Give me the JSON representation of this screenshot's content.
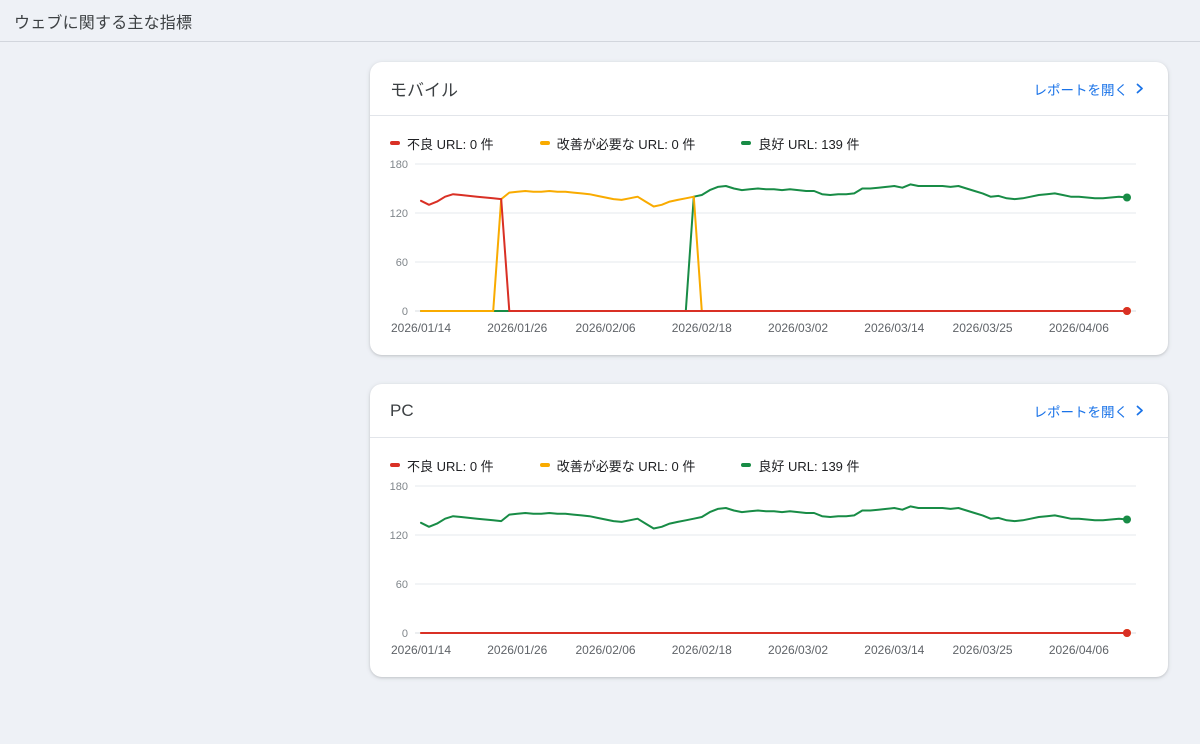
{
  "page": {
    "title": "ウェブに関する主な指標",
    "background": "#eef1f6",
    "accent_link_color": "#1a73e8"
  },
  "cards": [
    {
      "title": "モバイル",
      "report_link_label": "レポートを開く",
      "legend": [
        {
          "label": "不良 URL: 0 件"
        },
        {
          "label": "改善が必要な URL: 0 件"
        },
        {
          "label": "良好 URL: 139 件"
        }
      ]
    },
    {
      "title": "PC",
      "report_link_label": "レポートを開く",
      "legend": [
        {
          "label": "不良 URL: 0 件"
        },
        {
          "label": "改善が必要な URL: 0 件"
        },
        {
          "label": "良好 URL: 139 件"
        }
      ]
    }
  ],
  "chart_data": [
    {
      "type": "line",
      "title": "モバイル",
      "ylabel": "",
      "xlabel": "",
      "ylim": [
        0,
        180
      ],
      "yticks": [
        0,
        60,
        120,
        180
      ],
      "grid": true,
      "legend_position": "top",
      "x_count": 89,
      "xticks": [
        {
          "index": 0,
          "label": "2026/01/14"
        },
        {
          "index": 12,
          "label": "2026/01/26"
        },
        {
          "index": 23,
          "label": "2026/02/06"
        },
        {
          "index": 35,
          "label": "2026/02/18"
        },
        {
          "index": 47,
          "label": "2026/03/02"
        },
        {
          "index": 59,
          "label": "2026/03/14"
        },
        {
          "index": 70,
          "label": "2026/03/25"
        },
        {
          "index": 82,
          "label": "2026/04/06"
        }
      ],
      "series": [
        {
          "name": "不良 URL",
          "color": "#d93025",
          "values": [
            135,
            130,
            134,
            140,
            143,
            142,
            141,
            140,
            139,
            138,
            137,
            0,
            0,
            0,
            0,
            0,
            0,
            0,
            0,
            0,
            0,
            0,
            0,
            0,
            0,
            0,
            0,
            0,
            0,
            0,
            0,
            0,
            0,
            0,
            0,
            0,
            0,
            0,
            0,
            0,
            0,
            0,
            0,
            0,
            0,
            0,
            0,
            0,
            0,
            0,
            0,
            0,
            0,
            0,
            0,
            0,
            0,
            0,
            0,
            0,
            0,
            0,
            0,
            0,
            0,
            0,
            0,
            0,
            0,
            0,
            0,
            0,
            0,
            0,
            0,
            0,
            0,
            0,
            0,
            0,
            0,
            0,
            0,
            0,
            0,
            0,
            0,
            0,
            0
          ]
        },
        {
          "name": "改善が必要な URL",
          "color": "#f9ab00",
          "values": [
            0,
            0,
            0,
            0,
            0,
            0,
            0,
            0,
            0,
            0,
            137,
            145,
            146,
            147,
            146,
            146,
            147,
            146,
            146,
            145,
            144,
            143,
            141,
            139,
            137,
            136,
            138,
            140,
            134,
            128,
            130,
            134,
            136,
            138,
            140,
            0,
            0,
            0,
            0,
            0,
            0,
            0,
            0,
            0,
            0,
            0,
            0,
            0,
            0,
            0,
            0,
            0,
            0,
            0,
            0,
            0,
            0,
            0,
            0,
            0,
            0,
            0,
            0,
            0,
            0,
            0,
            0,
            0,
            0,
            0,
            0,
            0,
            0,
            0,
            0,
            0,
            0,
            0,
            0,
            0,
            0,
            0,
            0,
            0,
            0,
            0,
            0,
            0,
            0
          ]
        },
        {
          "name": "良好 URL",
          "color": "#188c46",
          "values": [
            0,
            0,
            0,
            0,
            0,
            0,
            0,
            0,
            0,
            0,
            0,
            0,
            0,
            0,
            0,
            0,
            0,
            0,
            0,
            0,
            0,
            0,
            0,
            0,
            0,
            0,
            0,
            0,
            0,
            0,
            0,
            0,
            0,
            0,
            140,
            142,
            148,
            152,
            153,
            150,
            148,
            149,
            150,
            149,
            149,
            148,
            149,
            148,
            147,
            147,
            143,
            142,
            143,
            143,
            144,
            150,
            150,
            151,
            152,
            153,
            151,
            155,
            153,
            153,
            153,
            153,
            152,
            153,
            150,
            147,
            144,
            140,
            141,
            138,
            137,
            138,
            140,
            142,
            143,
            144,
            142,
            140,
            140,
            139,
            138,
            138,
            139,
            140,
            139
          ]
        }
      ]
    },
    {
      "type": "line",
      "title": "PC",
      "ylabel": "",
      "xlabel": "",
      "ylim": [
        0,
        180
      ],
      "yticks": [
        0,
        60,
        120,
        180
      ],
      "grid": true,
      "legend_position": "top",
      "x_count": 89,
      "xticks": [
        {
          "index": 0,
          "label": "2026/01/14"
        },
        {
          "index": 12,
          "label": "2026/01/26"
        },
        {
          "index": 23,
          "label": "2026/02/06"
        },
        {
          "index": 35,
          "label": "2026/02/18"
        },
        {
          "index": 47,
          "label": "2026/03/02"
        },
        {
          "index": 59,
          "label": "2026/03/14"
        },
        {
          "index": 70,
          "label": "2026/03/25"
        },
        {
          "index": 82,
          "label": "2026/04/06"
        }
      ],
      "series": [
        {
          "name": "不良 URL",
          "color": "#d93025",
          "values": [
            0,
            0,
            0,
            0,
            0,
            0,
            0,
            0,
            0,
            0,
            0,
            0,
            0,
            0,
            0,
            0,
            0,
            0,
            0,
            0,
            0,
            0,
            0,
            0,
            0,
            0,
            0,
            0,
            0,
            0,
            0,
            0,
            0,
            0,
            0,
            0,
            0,
            0,
            0,
            0,
            0,
            0,
            0,
            0,
            0,
            0,
            0,
            0,
            0,
            0,
            0,
            0,
            0,
            0,
            0,
            0,
            0,
            0,
            0,
            0,
            0,
            0,
            0,
            0,
            0,
            0,
            0,
            0,
            0,
            0,
            0,
            0,
            0,
            0,
            0,
            0,
            0,
            0,
            0,
            0,
            0,
            0,
            0,
            0,
            0,
            0,
            0,
            0,
            0
          ]
        },
        {
          "name": "改善が必要な URL",
          "color": "#f9ab00",
          "values": [
            0,
            0,
            0,
            0,
            0,
            0,
            0,
            0,
            0,
            0,
            0,
            0,
            0,
            0,
            0,
            0,
            0,
            0,
            0,
            0,
            0,
            0,
            0,
            0,
            0,
            0,
            0,
            0,
            0,
            0,
            0,
            0,
            0,
            0,
            0,
            0,
            0,
            0,
            0,
            0,
            0,
            0,
            0,
            0,
            0,
            0,
            0,
            0,
            0,
            0,
            0,
            0,
            0,
            0,
            0,
            0,
            0,
            0,
            0,
            0,
            0,
            0,
            0,
            0,
            0,
            0,
            0,
            0,
            0,
            0,
            0,
            0,
            0,
            0,
            0,
            0,
            0,
            0,
            0,
            0,
            0,
            0,
            0,
            0,
            0,
            0,
            0,
            0,
            0
          ]
        },
        {
          "name": "良好 URL",
          "color": "#188c46",
          "values": [
            135,
            130,
            134,
            140,
            143,
            142,
            141,
            140,
            139,
            138,
            137,
            145,
            146,
            147,
            146,
            146,
            147,
            146,
            146,
            145,
            144,
            143,
            141,
            139,
            137,
            136,
            138,
            140,
            134,
            128,
            130,
            134,
            136,
            138,
            140,
            142,
            148,
            152,
            153,
            150,
            148,
            149,
            150,
            149,
            149,
            148,
            149,
            148,
            147,
            147,
            143,
            142,
            143,
            143,
            144,
            150,
            150,
            151,
            152,
            153,
            151,
            155,
            153,
            153,
            153,
            153,
            152,
            153,
            150,
            147,
            144,
            140,
            141,
            138,
            137,
            138,
            140,
            142,
            143,
            144,
            142,
            140,
            140,
            139,
            138,
            138,
            139,
            140,
            139
          ]
        }
      ]
    }
  ]
}
